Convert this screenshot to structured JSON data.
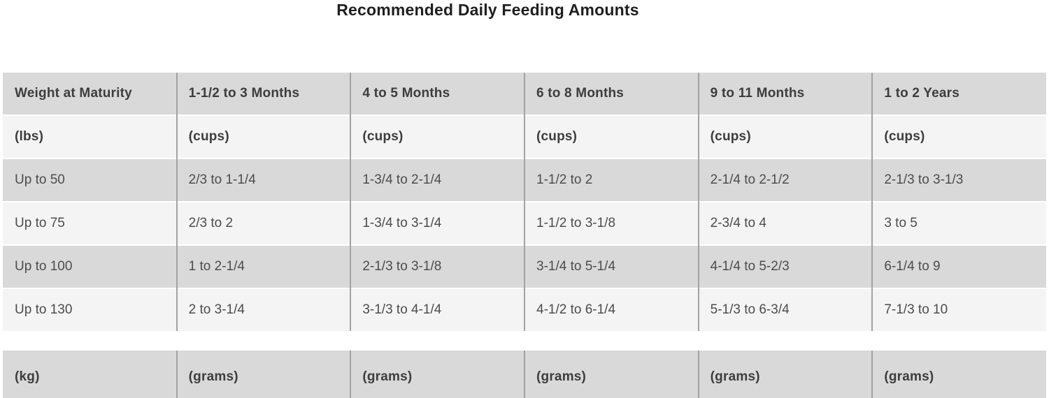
{
  "title": "Recommended Daily Feeding Amounts",
  "colors": {
    "row_dark": "#d9d9d9",
    "row_light": "#f4f4f4",
    "column_divider": "#a2a2a2",
    "body_text": "#4c4c4c",
    "header_text": "#3d3d3d",
    "title_text": "#1f1f1f",
    "page_background": "#ffffff"
  },
  "chart_data": {
    "type": "table",
    "title": "Recommended Daily Feeding Amounts",
    "columns": [
      "Weight at Maturity",
      "1-1/2 to 3 Months",
      "4 to 5 Months",
      "6 to 8 Months",
      "9 to 11 Months",
      "1 to 2 Years"
    ],
    "units_imperial": [
      "(lbs)",
      "(cups)",
      "(cups)",
      "(cups)",
      "(cups)",
      "(cups)"
    ],
    "rows_imperial_cups": [
      [
        "Up to 50",
        "2/3 to 1-1/4",
        "1-3/4 to 2-1/4",
        "1-1/2 to 2",
        "2-1/4 to 2-1/2",
        "2-1/3 to 3-1/3"
      ],
      [
        "Up to 75",
        "2/3 to 2",
        "1-3/4 to 3-1/4",
        "1-1/2 to 3-1/8",
        "2-3/4 to 4",
        "3 to 5"
      ],
      [
        "Up to 100",
        "1 to 2-1/4",
        "2-1/3 to 3-1/8",
        "3-1/4 to 5-1/4",
        "4-1/4 to 5-2/3",
        "6-1/4 to 9"
      ],
      [
        "Up to 130",
        "2 to 3-1/4",
        "3-1/3 to 4-1/4",
        "4-1/2 to 6-1/4",
        "5-1/3 to 6-3/4",
        "7-1/3 to 10"
      ]
    ],
    "units_metric": [
      "(kg)",
      "(grams)",
      "(grams)",
      "(grams)",
      "(grams)",
      "(grams)"
    ],
    "layout": {
      "legend": false,
      "grid": "vertical-column-dividers-only",
      "row_style": "alternating dark/light",
      "metric_table_clipped_at_bottom": true
    }
  }
}
